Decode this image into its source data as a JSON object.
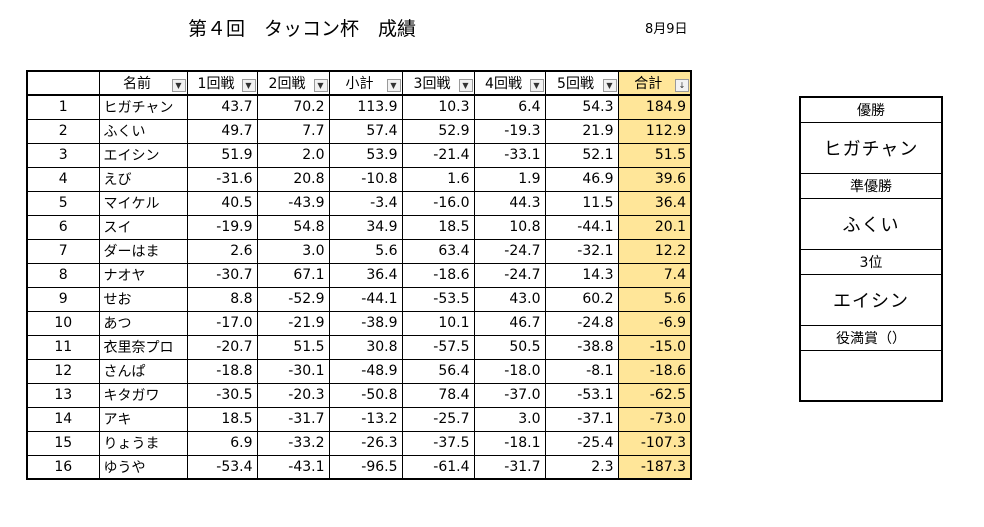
{
  "title": "第４回　タッコン杯　成績",
  "date": "8月9日",
  "filter_icon": "dropdown-arrow-icon",
  "sort_icon": "sort-desc-icon",
  "headers": [
    "",
    "名前",
    "1回戦",
    "2回戦",
    "小計",
    "3回戦",
    "4回戦",
    "5回戦",
    "合計"
  ],
  "rows": [
    {
      "rank": "1",
      "name": "ヒガチャン",
      "r1": "43.7",
      "r2": "70.2",
      "sub": "113.9",
      "r3": "10.3",
      "r4": "6.4",
      "r5": "54.3",
      "total": "184.9"
    },
    {
      "rank": "2",
      "name": "ふくい",
      "r1": "49.7",
      "r2": "7.7",
      "sub": "57.4",
      "r3": "52.9",
      "r4": "-19.3",
      "r5": "21.9",
      "total": "112.9"
    },
    {
      "rank": "3",
      "name": "エイシン",
      "r1": "51.9",
      "r2": "2.0",
      "sub": "53.9",
      "r3": "-21.4",
      "r4": "-33.1",
      "r5": "52.1",
      "total": "51.5"
    },
    {
      "rank": "4",
      "name": "えび",
      "r1": "-31.6",
      "r2": "20.8",
      "sub": "-10.8",
      "r3": "1.6",
      "r4": "1.9",
      "r5": "46.9",
      "total": "39.6"
    },
    {
      "rank": "5",
      "name": "マイケル",
      "r1": "40.5",
      "r2": "-43.9",
      "sub": "-3.4",
      "r3": "-16.0",
      "r4": "44.3",
      "r5": "11.5",
      "total": "36.4"
    },
    {
      "rank": "6",
      "name": "スイ",
      "r1": "-19.9",
      "r2": "54.8",
      "sub": "34.9",
      "r3": "18.5",
      "r4": "10.8",
      "r5": "-44.1",
      "total": "20.1"
    },
    {
      "rank": "7",
      "name": "ダーはま",
      "r1": "2.6",
      "r2": "3.0",
      "sub": "5.6",
      "r3": "63.4",
      "r4": "-24.7",
      "r5": "-32.1",
      "total": "12.2"
    },
    {
      "rank": "8",
      "name": "ナオヤ",
      "r1": "-30.7",
      "r2": "67.1",
      "sub": "36.4",
      "r3": "-18.6",
      "r4": "-24.7",
      "r5": "14.3",
      "total": "7.4"
    },
    {
      "rank": "9",
      "name": "せお",
      "r1": "8.8",
      "r2": "-52.9",
      "sub": "-44.1",
      "r3": "-53.5",
      "r4": "43.0",
      "r5": "60.2",
      "total": "5.6"
    },
    {
      "rank": "10",
      "name": "あつ",
      "r1": "-17.0",
      "r2": "-21.9",
      "sub": "-38.9",
      "r3": "10.1",
      "r4": "46.7",
      "r5": "-24.8",
      "total": "-6.9"
    },
    {
      "rank": "11",
      "name": "衣里奈プロ",
      "r1": "-20.7",
      "r2": "51.5",
      "sub": "30.8",
      "r3": "-57.5",
      "r4": "50.5",
      "r5": "-38.8",
      "total": "-15.0"
    },
    {
      "rank": "12",
      "name": "さんぱ",
      "r1": "-18.8",
      "r2": "-30.1",
      "sub": "-48.9",
      "r3": "56.4",
      "r4": "-18.0",
      "r5": "-8.1",
      "total": "-18.6"
    },
    {
      "rank": "13",
      "name": "キタガワ",
      "r1": "-30.5",
      "r2": "-20.3",
      "sub": "-50.8",
      "r3": "78.4",
      "r4": "-37.0",
      "r5": "-53.1",
      "total": "-62.5"
    },
    {
      "rank": "14",
      "name": "アキ",
      "r1": "18.5",
      "r2": "-31.7",
      "sub": "-13.2",
      "r3": "-25.7",
      "r4": "3.0",
      "r5": "-37.1",
      "total": "-73.0"
    },
    {
      "rank": "15",
      "name": "りょうま",
      "r1": "6.9",
      "r2": "-33.2",
      "sub": "-26.3",
      "r3": "-37.5",
      "r4": "-18.1",
      "r5": "-25.4",
      "total": "-107.3"
    },
    {
      "rank": "16",
      "name": "ゆうや",
      "r1": "-53.4",
      "r2": "-43.1",
      "sub": "-96.5",
      "r3": "-61.4",
      "r4": "-31.7",
      "r5": "2.3",
      "total": "-187.3"
    }
  ],
  "awards": {
    "first_label": "優勝",
    "first_name": "ヒガチャン",
    "second_label": "準優勝",
    "second_name": "ふくい",
    "third_label": "3位",
    "third_name": "エイシン",
    "yakuman_label": "役満賞（）",
    "yakuman_name": ""
  },
  "colors": {
    "total_fill": "#ffe699",
    "border": "#000000"
  }
}
